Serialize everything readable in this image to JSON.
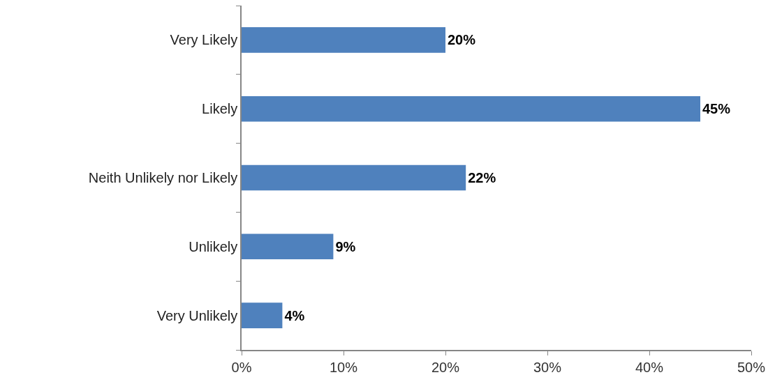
{
  "chart_data": {
    "type": "bar",
    "orientation": "horizontal",
    "categories": [
      "Very Likely",
      "Likely",
      "Neith Unlikely nor Likely",
      "Unlikely",
      "Very Unlikely"
    ],
    "values": [
      20,
      45,
      22,
      9,
      4
    ],
    "value_labels": [
      "20%",
      "45%",
      "22%",
      "9%",
      "4%"
    ],
    "color": "#4f81bd",
    "xlim": [
      0,
      50
    ],
    "xticks": [
      {
        "value": 0,
        "label": "0%"
      },
      {
        "value": 10,
        "label": "10%"
      },
      {
        "value": 20,
        "label": "20%"
      },
      {
        "value": 30,
        "label": "30%"
      },
      {
        "value": 40,
        "label": "40%"
      },
      {
        "value": 50,
        "label": "50%"
      }
    ]
  }
}
